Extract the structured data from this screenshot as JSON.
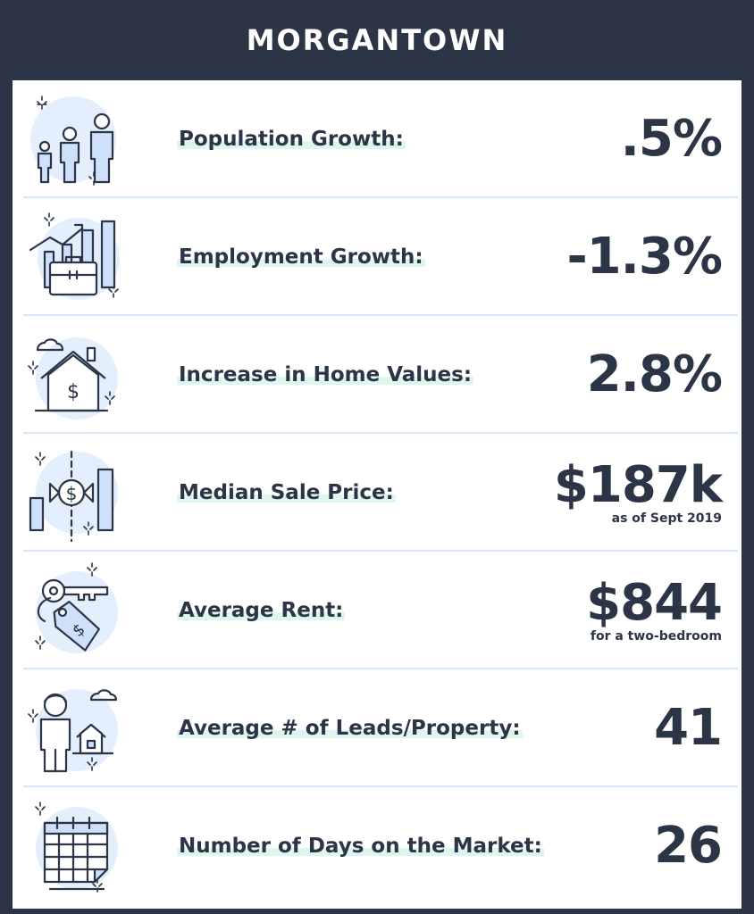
{
  "header": {
    "title": "MORGANTOWN"
  },
  "rows": [
    {
      "icon": "family-icon",
      "label": "Population Growth:",
      "value": ".5%",
      "note": ""
    },
    {
      "icon": "briefcase-chart-icon",
      "label": "Employment Growth:",
      "value": "-1.3%",
      "note": ""
    },
    {
      "icon": "house-dollar-icon",
      "label": "Increase in Home Values:",
      "value": "2.8%",
      "note": ""
    },
    {
      "icon": "price-chart-icon",
      "label": "Median Sale Price:",
      "value": "$187k",
      "note": "as  of Sept 2019"
    },
    {
      "icon": "key-tag-icon",
      "label": "Average Rent:",
      "value": "$844",
      "note": "for a two-bedroom"
    },
    {
      "icon": "person-house-icon",
      "label": "Average # of Leads/Property:",
      "value": "41",
      "note": ""
    },
    {
      "icon": "calendar-icon",
      "label": "Number of Days on the Market:",
      "value": "26",
      "note": ""
    }
  ],
  "colors": {
    "header_bg": "#2b3546",
    "text": "#2b3546",
    "highlight": "#dff6ee",
    "icon_fill": "#cfe0fb",
    "separator": "#d8e7f7"
  }
}
